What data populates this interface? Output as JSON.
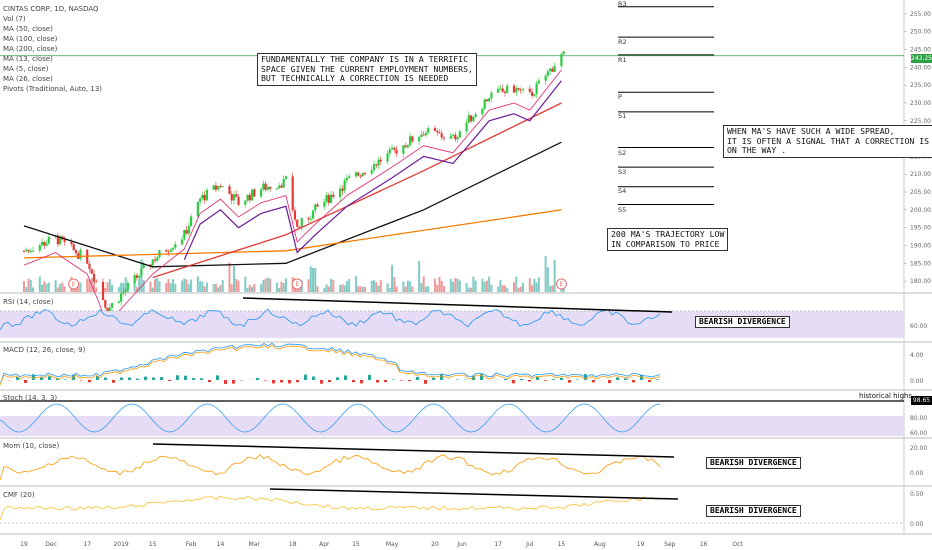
{
  "legend": {
    "title": "CINTAS CORP, 1D, NASDAQ",
    "items": [
      "Vol (7)",
      "MA (50, close)",
      "MA (100, close)",
      "MA (200, close)",
      "MA (13, close)",
      "MA (5, close)",
      "MA (26, close)",
      "Pivots (Traditional, Auto, 13)"
    ]
  },
  "panes": {
    "rsi": "RSI (14, close)",
    "macd": "MACD (12, 26, close, 9)",
    "stoch": "Stoch (14, 3, 3)",
    "mom": "Mom (10, close)",
    "cmf": "CMF (20)"
  },
  "annotations": {
    "fundamental": "FUNDAMENTALLY THE COMPANY IS IN A TERRIFIC\nSPACE GIVEN THE CURRENT EMPLOYMENT NUMBERS,\nBUT TECHNICALLY A CORRECTION IS NEEDED",
    "ma_spread": "WHEN MA'S HAVE SUCH A WIDE SPREAD,\nIT IS OFTEN A SIGNAL THAT A CORRECTION IS\nON THE WAY .",
    "ma200": "200 MA'S TRAJECTORY LOW\nIN COMPARISON TO PRICE",
    "rsi_div": "BEARISH DIVERGENCE",
    "mom_div": "BEARISH DIVERGENCE",
    "cmf_div": "BEARISH DIVERGENCE",
    "historical": "historical highs"
  },
  "pivots": [
    "R3",
    "R2",
    "R1",
    "P",
    "S1",
    "S2",
    "S3",
    "S4",
    "S5"
  ],
  "earnings_marker": "E",
  "badges": {
    "price": "243.25",
    "stoch": "98.65"
  },
  "colors": {
    "up": "#26a69a",
    "green_candle": "#2ecc40",
    "down": "#e53935",
    "ma200": "#111111",
    "ma100": "#f57c00",
    "ma50": "#e53935",
    "ma26": "#6a1b9a",
    "ma13": "#e91e63",
    "ma5": "#2e7d32",
    "rsi": "#2196f3",
    "macd_signal": "#ff9800",
    "cmf": "#fbc02d",
    "band": "#e6dcf5"
  },
  "chart_data": {
    "type": "candlestick",
    "title": "CINTAS CORP, 1D, NASDAQ",
    "price_axis": {
      "ylim": [
        177.5,
        257.5
      ],
      "ticks": [
        "255.00",
        "250.00",
        "245.00",
        "240.00",
        "235.00",
        "230.00",
        "225.00",
        "220.00",
        "215.00",
        "210.00",
        "205.00",
        "200.00",
        "195.00",
        "190.00",
        "185.00",
        "180.00"
      ]
    },
    "x_ticks": [
      "19",
      "Dec",
      "17",
      "2019",
      "15",
      "Feb",
      "14",
      "Mar",
      "18",
      "Apr",
      "15",
      "May",
      "20",
      "Jun",
      "17",
      "Jul",
      "15",
      "Aug",
      "19",
      "Sep",
      "16",
      "Oct"
    ],
    "pivot_levels": {
      "R3": 257.0,
      "R2": 248.5,
      "R1": 243.5,
      "P": 233.0,
      "S1": 227.5,
      "S2": 217.5,
      "S3": 212.0,
      "S4": 206.5,
      "S5": 201.5
    },
    "close_path": [
      {
        "x": "2018-11-19",
        "y": 188.5
      },
      {
        "x": "2018-12-03",
        "y": 192.0
      },
      {
        "x": "2018-12-17",
        "y": 186.0
      },
      {
        "x": "2018-12-26",
        "y": 172.0
      },
      {
        "x": "2019-01-15",
        "y": 186.0
      },
      {
        "x": "2019-01-29",
        "y": 193.0
      },
      {
        "x": "2019-02-05",
        "y": 203.0
      },
      {
        "x": "2019-02-14",
        "y": 207.0
      },
      {
        "x": "2019-02-22",
        "y": 202.0
      },
      {
        "x": "2019-03-04",
        "y": 206.0
      },
      {
        "x": "2019-03-15",
        "y": 208.0
      },
      {
        "x": "2019-03-20",
        "y": 195.0
      },
      {
        "x": "2019-03-28",
        "y": 200.0
      },
      {
        "x": "2019-04-11",
        "y": 208.0
      },
      {
        "x": "2019-05-01",
        "y": 216.0
      },
      {
        "x": "2019-05-15",
        "y": 222.0
      },
      {
        "x": "2019-05-28",
        "y": 220.0
      },
      {
        "x": "2019-06-05",
        "y": 226.0
      },
      {
        "x": "2019-06-13",
        "y": 232.0
      },
      {
        "x": "2019-06-24",
        "y": 234.0
      },
      {
        "x": "2019-07-01",
        "y": 232.0
      },
      {
        "x": "2019-07-15",
        "y": 243.25
      }
    ],
    "moving_averages": [
      {
        "name": "MA (200, close)",
        "values": [
          {
            "x": "2018-11-19",
            "y": 195.5
          },
          {
            "x": "2019-01-15",
            "y": 184.0
          },
          {
            "x": "2019-03-15",
            "y": 185.0
          },
          {
            "x": "2019-05-15",
            "y": 200.0
          },
          {
            "x": "2019-07-15",
            "y": 219.0
          }
        ]
      },
      {
        "name": "MA (100, close)",
        "values": [
          {
            "x": "2018-11-19",
            "y": 186.5
          },
          {
            "x": "2019-03-15",
            "y": 188.5
          },
          {
            "x": "2019-07-15",
            "y": 200.0
          }
        ]
      },
      {
        "name": "MA (50, close)",
        "values": [
          {
            "x": "2019-01-15",
            "y": 181.0
          },
          {
            "x": "2019-03-15",
            "y": 193.0
          },
          {
            "x": "2019-05-15",
            "y": 211.0
          },
          {
            "x": "2019-07-15",
            "y": 230.0
          }
        ]
      }
    ],
    "volume_note": "Vol (7)"
  }
}
